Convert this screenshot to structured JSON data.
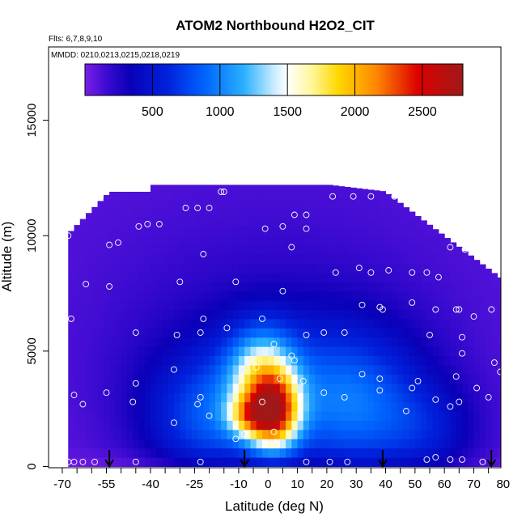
{
  "chart_data": {
    "type": "heatmap",
    "title": "ATOM2 Northbound H2O2_CIT",
    "subtitle_flights": "Flts: 6,7,8,9,10",
    "subtitle_dates": "MMDD: 0210,0213,0215,0218,0219",
    "xlabel": "Latitude (deg N)",
    "ylabel": "Altitude (m)",
    "xlim": [
      -70,
      85
    ],
    "ylim": [
      0,
      18000
    ],
    "x_ticks": [
      -70,
      -55,
      -40,
      -25,
      -10,
      0,
      10,
      20,
      30,
      40,
      50,
      60,
      70,
      80
    ],
    "x_tick_labels": [
      "-70",
      "-55",
      "-40",
      "-25",
      "-10",
      "0",
      "10",
      "20",
      "30",
      "40",
      "50",
      "60",
      "70",
      "80"
    ],
    "y_ticks": [
      0,
      5000,
      10000,
      15000
    ],
    "y_tick_labels": [
      "0",
      "5000",
      "10000",
      "15000"
    ],
    "colorbar": {
      "range": [
        0,
        2800
      ],
      "ticks": [
        500,
        1000,
        1500,
        2000,
        2500
      ],
      "tick_labels": [
        "500",
        "1000",
        "1500",
        "2000",
        "2500"
      ],
      "colors": [
        "#7a1ee8",
        "#0a00b8",
        "#0044ff",
        "#2ab0ff",
        "#ffffff",
        "#ffff00",
        "#ff9900",
        "#cc0000",
        "#a01818"
      ]
    },
    "arrow_latitudes": [
      -54,
      -8,
      39,
      76
    ],
    "sample_points": [
      {
        "x": -68,
        "y": 200
      },
      {
        "x": -66,
        "y": 200
      },
      {
        "x": -63,
        "y": 200
      },
      {
        "x": -59,
        "y": 200
      },
      {
        "x": -45,
        "y": 200
      },
      {
        "x": -23,
        "y": 200
      },
      {
        "x": 13,
        "y": 200
      },
      {
        "x": 21,
        "y": 200
      },
      {
        "x": 27,
        "y": 200
      },
      {
        "x": 54,
        "y": 300
      },
      {
        "x": 57,
        "y": 400
      },
      {
        "x": 62,
        "y": 300
      },
      {
        "x": 66,
        "y": 300
      },
      {
        "x": 73,
        "y": 200
      },
      {
        "x": -66,
        "y": 3100
      },
      {
        "x": -63,
        "y": 2700
      },
      {
        "x": -55,
        "y": 3200
      },
      {
        "x": -46,
        "y": 2800
      },
      {
        "x": -45,
        "y": 3600
      },
      {
        "x": -32,
        "y": 1900
      },
      {
        "x": -24,
        "y": 2700
      },
      {
        "x": -23,
        "y": 3000
      },
      {
        "x": -32,
        "y": 4200
      },
      {
        "x": -20,
        "y": 2200
      },
      {
        "x": -8,
        "y": 1400
      },
      {
        "x": -4,
        "y": 4300
      },
      {
        "x": -2,
        "y": 2800
      },
      {
        "x": 4,
        "y": 3800
      },
      {
        "x": 8,
        "y": 4800
      },
      {
        "x": 12,
        "y": 3700
      },
      {
        "x": 19,
        "y": 3200
      },
      {
        "x": 26,
        "y": 3000
      },
      {
        "x": 32,
        "y": 4000
      },
      {
        "x": 38,
        "y": 3300
      },
      {
        "x": 38,
        "y": 3800
      },
      {
        "x": 47,
        "y": 2400
      },
      {
        "x": 49,
        "y": 3400
      },
      {
        "x": 51,
        "y": 3700
      },
      {
        "x": 57,
        "y": 2900
      },
      {
        "x": 62,
        "y": 2600
      },
      {
        "x": 65,
        "y": 2800
      },
      {
        "x": 64,
        "y": 3900
      },
      {
        "x": 71,
        "y": 3400
      },
      {
        "x": 75,
        "y": 3000
      },
      {
        "x": 77,
        "y": 4500
      },
      {
        "x": 79,
        "y": 4100
      },
      {
        "x": -11,
        "y": 1200
      },
      {
        "x": 2,
        "y": 1500
      },
      {
        "x": -45,
        "y": 5800
      },
      {
        "x": -31,
        "y": 5700
      },
      {
        "x": -23,
        "y": 5800
      },
      {
        "x": -22,
        "y": 6400
      },
      {
        "x": -14,
        "y": 6000
      },
      {
        "x": -2,
        "y": 6400
      },
      {
        "x": 2,
        "y": 5300
      },
      {
        "x": 9,
        "y": 4600
      },
      {
        "x": 13,
        "y": 5700
      },
      {
        "x": 19,
        "y": 5800
      },
      {
        "x": 26,
        "y": 5800
      },
      {
        "x": 32,
        "y": 7000
      },
      {
        "x": 38,
        "y": 6900
      },
      {
        "x": 39,
        "y": 6800
      },
      {
        "x": 49,
        "y": 7100
      },
      {
        "x": 55,
        "y": 5700
      },
      {
        "x": 57,
        "y": 6800
      },
      {
        "x": 64,
        "y": 6800
      },
      {
        "x": 65,
        "y": 6800
      },
      {
        "x": 66,
        "y": 5600
      },
      {
        "x": 66,
        "y": 4900
      },
      {
        "x": 70,
        "y": 6500
      },
      {
        "x": 76,
        "y": 6800
      },
      {
        "x": -67,
        "y": 6400
      },
      {
        "x": -62,
        "y": 7900
      },
      {
        "x": -54,
        "y": 7800
      },
      {
        "x": -30,
        "y": 8000
      },
      {
        "x": -11,
        "y": 8000
      },
      {
        "x": 5,
        "y": 7600
      },
      {
        "x": 23,
        "y": 8400
      },
      {
        "x": 31,
        "y": 8600
      },
      {
        "x": 35,
        "y": 8400
      },
      {
        "x": 41,
        "y": 8500
      },
      {
        "x": 49,
        "y": 8400
      },
      {
        "x": 54,
        "y": 8400
      },
      {
        "x": 58,
        "y": 8200
      },
      {
        "x": -68,
        "y": 10000
      },
      {
        "x": -54,
        "y": 9600
      },
      {
        "x": -51,
        "y": 9700
      },
      {
        "x": -44,
        "y": 10400
      },
      {
        "x": -41,
        "y": 10500
      },
      {
        "x": -37,
        "y": 10500
      },
      {
        "x": -22,
        "y": 9200
      },
      {
        "x": -1,
        "y": 10300
      },
      {
        "x": 5,
        "y": 10400
      },
      {
        "x": 9,
        "y": 10900
      },
      {
        "x": 13,
        "y": 10300
      },
      {
        "x": 8,
        "y": 9500
      },
      {
        "x": 13,
        "y": 10900
      },
      {
        "x": 62,
        "y": 9500
      },
      {
        "x": 67,
        "y": 9400
      },
      {
        "x": 74,
        "y": 9100
      },
      {
        "x": 79,
        "y": 8500
      },
      {
        "x": -57,
        "y": 11700
      },
      {
        "x": -28,
        "y": 11200
      },
      {
        "x": -24,
        "y": 11200
      },
      {
        "x": -20,
        "y": 11200
      },
      {
        "x": -16,
        "y": 11900
      },
      {
        "x": -15,
        "y": 11900
      },
      {
        "x": 22,
        "y": 11700
      },
      {
        "x": 29,
        "y": 11700
      },
      {
        "x": 35,
        "y": 11700
      },
      {
        "x": 43,
        "y": 11700
      }
    ]
  }
}
